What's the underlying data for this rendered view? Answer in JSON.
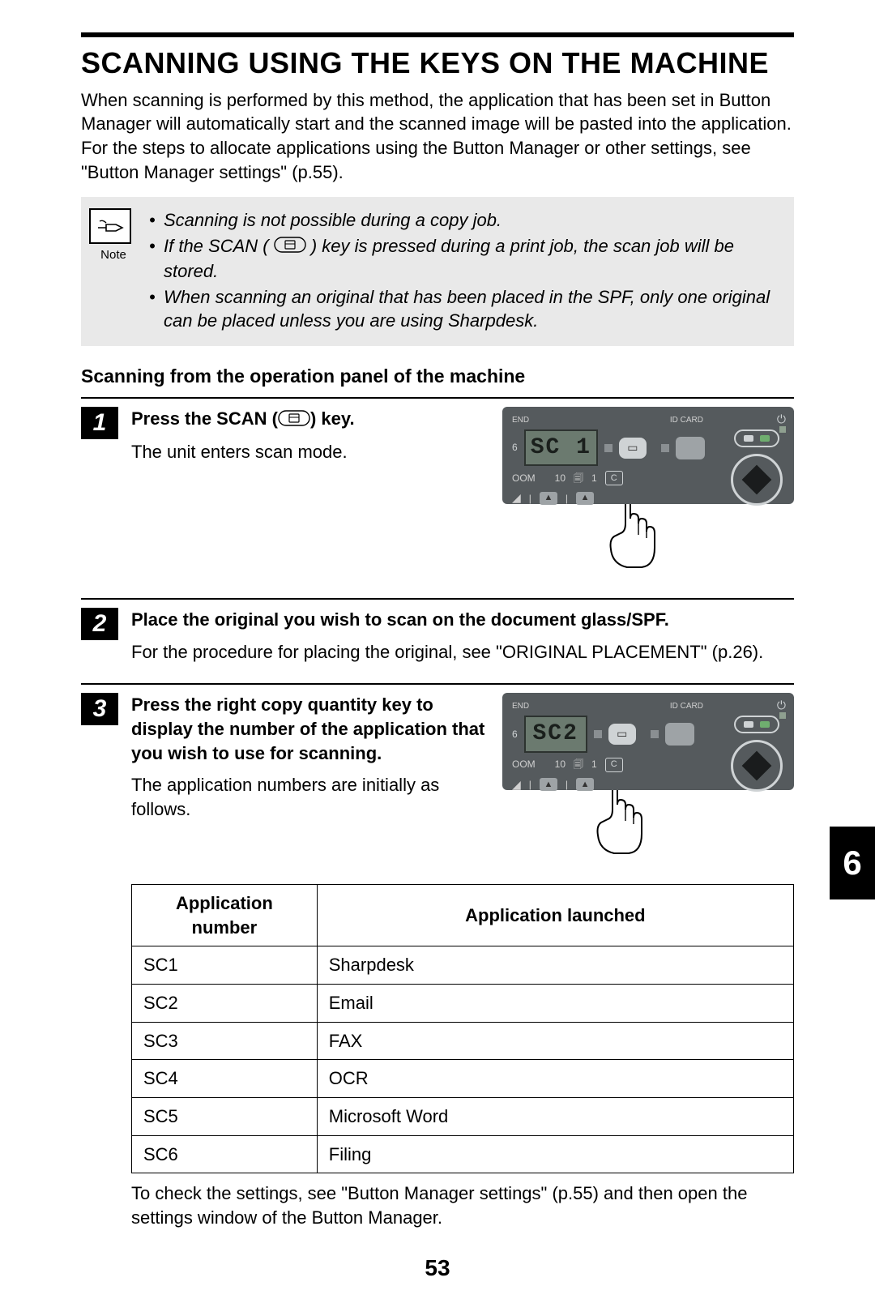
{
  "colors": {
    "panel_bg": "#555a5d",
    "lcd_bg": "#6b7a6f",
    "note_bg": "#e9e9e9",
    "black": "#000000",
    "white": "#ffffff"
  },
  "page": {
    "title": "SCANNING USING THE KEYS ON THE MACHINE",
    "intro": "When scanning is performed by this method, the application that has been set in Button Manager will automatically start and the scanned image will be pasted into the application. For the steps to allocate applications using the Button Manager or other settings, see \"Button Manager settings\" (p.55).",
    "chapter_tab": "6",
    "page_number": "53"
  },
  "note": {
    "label": "Note",
    "items": [
      "Scanning is not possible during a copy job.",
      "If the SCAN (        ) key is pressed during a print job, the scan job will be stored.",
      "When scanning an original that has been placed in the SPF, only one original can be placed unless you are using Sharpdesk."
    ]
  },
  "subheading": "Scanning from the operation panel of the machine",
  "steps": [
    {
      "num": "1",
      "title": "Press the SCAN (        ) key.",
      "body": "The unit enters scan mode.",
      "lcd": "SC 1",
      "show_panel": true,
      "hand_offset": "right"
    },
    {
      "num": "2",
      "title": "Place the original you wish to scan on the document glass/SPF.",
      "body": "For the procedure for placing the original, see \"ORIGINAL PLACEMENT\" (p.26).",
      "show_panel": false
    },
    {
      "num": "3",
      "title": "Press the right copy quantity key to display the number of the application that you wish to use for scanning.",
      "body": "The application numbers are initially as follows.",
      "lcd": "SC2",
      "show_panel": true,
      "hand_offset": "left"
    }
  ],
  "panel_labels": {
    "end": "END",
    "idcard": "ID CARD",
    "oom": "OOM",
    "ten": "10",
    "one": "1",
    "c": "C"
  },
  "app_table": {
    "headers": [
      "Application number",
      "Application launched"
    ],
    "rows": [
      [
        "SC1",
        "Sharpdesk"
      ],
      [
        "SC2",
        "Email"
      ],
      [
        "SC3",
        "FAX"
      ],
      [
        "SC4",
        "OCR"
      ],
      [
        "SC5",
        "Microsoft Word"
      ],
      [
        "SC6",
        "Filing"
      ]
    ],
    "col_widths": [
      "28%",
      "72%"
    ]
  },
  "after_table": "To check the settings, see \"Button Manager settings\" (p.55) and then open the settings window of the Button Manager."
}
